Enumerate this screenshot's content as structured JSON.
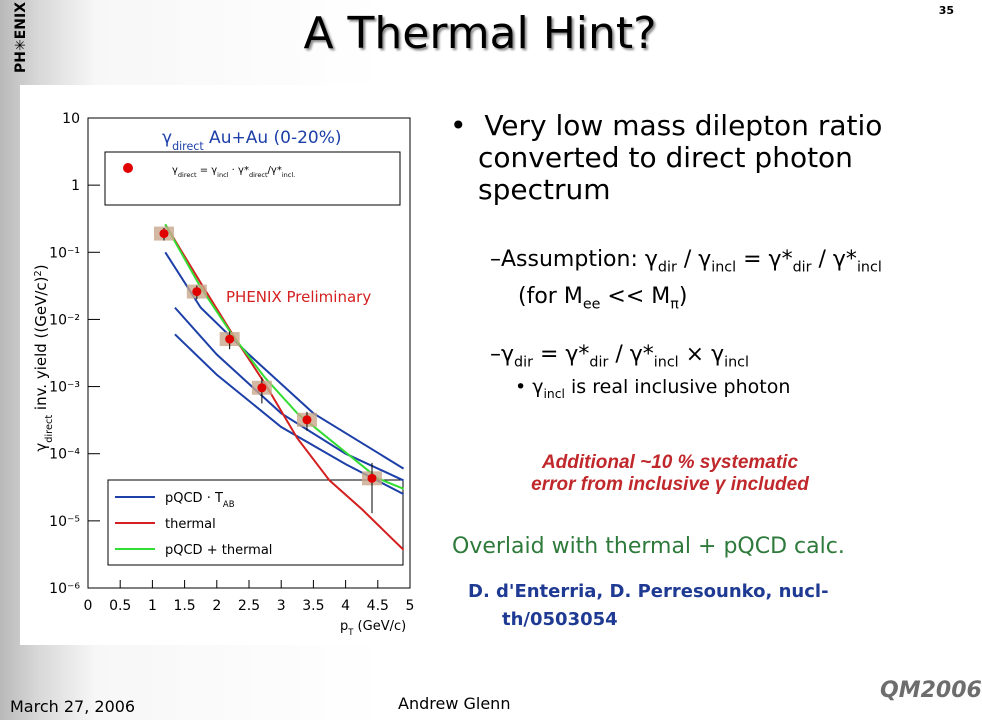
{
  "title": "A Thermal Hint?",
  "slide_number": "35",
  "bullets": [
    [
      "Very low mass dilepton ratio converted to direct photon spectrum"
    ]
  ],
  "sub_bullets": [
    [
      "–Assumption: γ",
      {
        "sub": "dir"
      },
      " / γ",
      {
        "sub": "incl"
      },
      " = γ*",
      {
        "sub": "dir"
      },
      " / γ*",
      {
        "sub": "incl"
      },
      "  (for M",
      {
        "sub": "ee"
      },
      " << M",
      {
        "sub": "π"
      },
      ")"
    ],
    [
      "–γ",
      {
        "sub": "dir"
      },
      " = γ*",
      {
        "sub": "dir"
      },
      " / γ*",
      {
        "sub": "incl"
      },
      " × γ",
      {
        "sub": "incl"
      }
    ]
  ],
  "sub_sub_bullets": [
    [
      "• γ",
      {
        "sub": "incl"
      },
      " is real inclusive photon"
    ]
  ],
  "red_note": [
    "Additional ~10 % systematic",
    "error from inclusive γ included"
  ],
  "green_note": "Overlaid with thermal + pQCD calc.",
  "reference": "D. d'Enterria, D. Perresounko, nucl-th/0503054",
  "footer": {
    "date": "March 27, 2006",
    "author": "Andrew Glenn"
  },
  "logos": {
    "left": "PH✳ENIX",
    "right": "QM2006"
  },
  "chart_data": {
    "type": "line",
    "plot_title": [
      "γ",
      {
        "sub": "direct"
      },
      " Au+Au (0-20%)"
    ],
    "annotation": "PHENIX Preliminary",
    "x_label": [
      "p",
      {
        "sub": "T"
      },
      " (GeV/c)"
    ],
    "y_label": [
      "γ",
      {
        "sub": "direct"
      },
      " inv. yield ((GeV/c)",
      {
        "sup": "2"
      },
      ")"
    ],
    "xlim": [
      0,
      5
    ],
    "xticks": [
      0,
      0.5,
      1,
      1.5,
      2,
      2.5,
      3,
      3.5,
      4,
      4.5,
      5
    ],
    "ylim": [
      1e-06,
      10
    ],
    "log_y": true,
    "yticks": [
      {
        "value": 10,
        "label": "10"
      },
      {
        "value": 1,
        "label": "1"
      },
      {
        "value": 0.1,
        "label": "10⁻¹"
      },
      {
        "value": 0.01,
        "label": "10⁻²"
      },
      {
        "value": 0.001,
        "label": "10⁻³"
      },
      {
        "value": 0.0001,
        "label": "10⁻⁴"
      },
      {
        "value": 1e-05,
        "label": "10⁻⁵"
      },
      {
        "value": 1e-06,
        "label": "10⁻⁶"
      }
    ],
    "points": {
      "label": [
        "γ",
        {
          "sub": "direct"
        },
        " = γ",
        {
          "sub": "incl"
        },
        " · γ*",
        {
          "sub": "direct"
        },
        "/γ*",
        {
          "sub": "incl."
        }
      ],
      "color": "#e00000",
      "x": [
        1.18,
        1.69,
        2.2,
        2.7,
        3.4,
        4.41
      ],
      "values": [
        0.19,
        0.026,
        0.0051,
        0.00096,
        0.00032,
        4.3e-05
      ],
      "errors": [
        0.04,
        0.006,
        0.0015,
        0.0004,
        0.0001,
        3e-05
      ]
    },
    "series": [
      {
        "name": [
          "pQCD · T",
          {
            "sub": "AB"
          }
        ],
        "color": "#1c3fa8",
        "x": [
          1.2,
          1.75,
          2.5,
          3.5,
          4.9
        ],
        "values": [
          0.1,
          0.015,
          0.003,
          0.0004,
          6e-05
        ]
      },
      {
        "color": "#1c3fa8",
        "x": [
          1.35,
          2,
          3,
          4,
          4.9
        ],
        "values": [
          0.015,
          0.003,
          0.0004,
          0.0001,
          4e-05
        ]
      },
      {
        "color": "#1c3fa8",
        "x": [
          1.35,
          2,
          3,
          4,
          4.9
        ],
        "values": [
          0.006,
          0.0015,
          0.00025,
          7e-05,
          2.5e-05
        ]
      },
      {
        "name": [
          "thermal"
        ],
        "color": "#d42020",
        "x": [
          1.2,
          1.75,
          2.25,
          2.75,
          3.25,
          3.75,
          4.25,
          4.9
        ],
        "values": [
          0.26,
          0.035,
          0.0059,
          0.0011,
          0.00017,
          4e-05,
          1.5e-05,
          3.7e-06
        ]
      },
      {
        "name": [
          "pQCD + thermal"
        ],
        "color": "#33dd33",
        "x": [
          1.2,
          1.75,
          2.25,
          2.75,
          3.25,
          4.5,
          4.9
        ],
        "values": [
          0.26,
          0.03,
          0.0057,
          0.00135,
          0.0004,
          4.3e-05,
          3e-05
        ]
      }
    ]
  }
}
